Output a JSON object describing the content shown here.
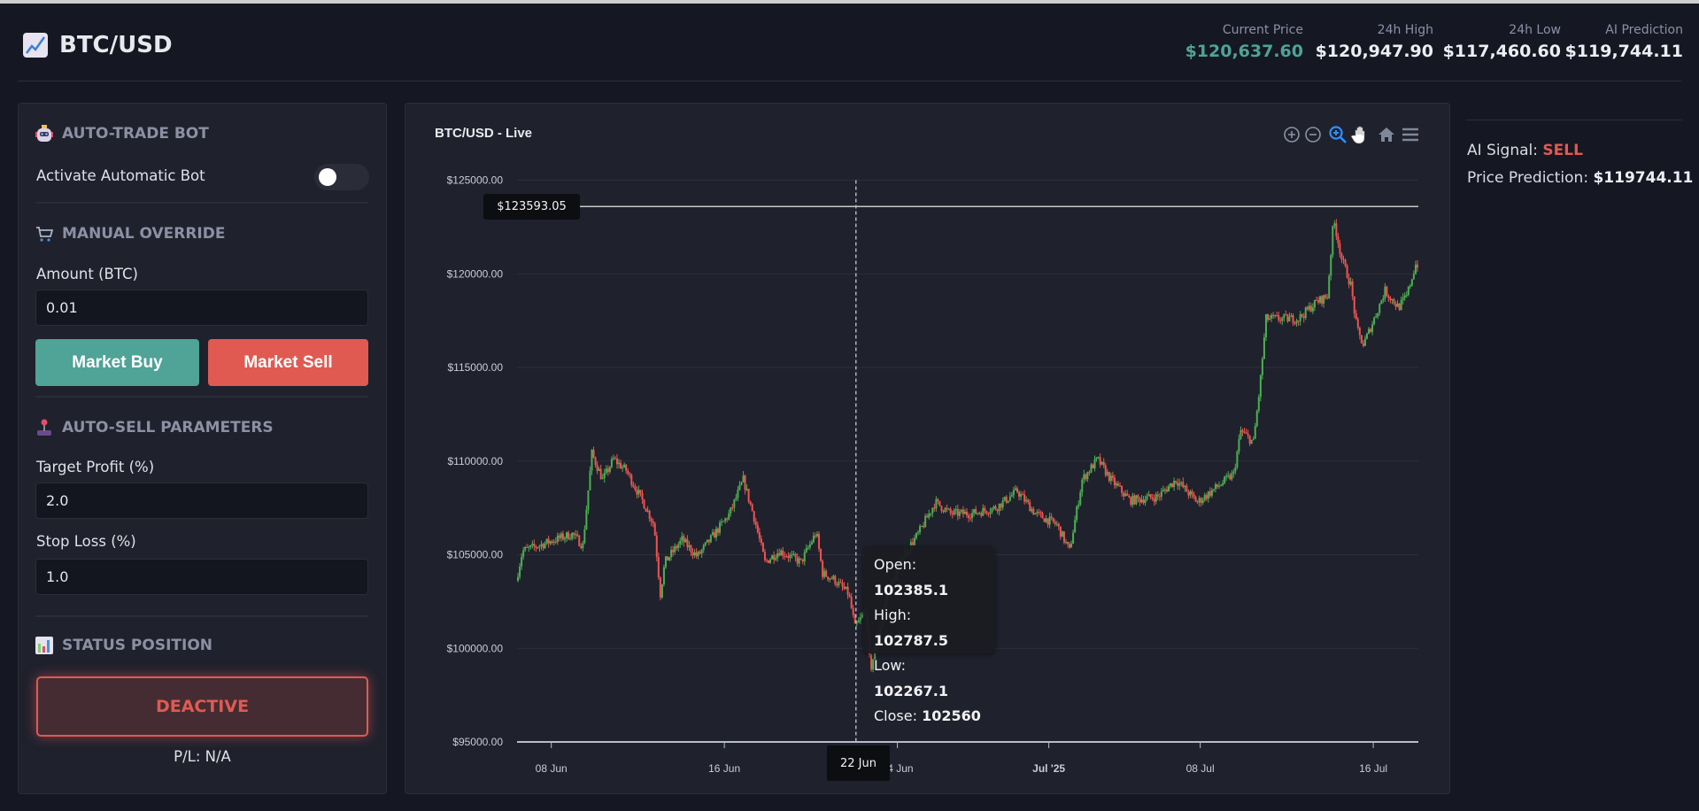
{
  "header": {
    "title": "BTC/USD",
    "icon": "chart-increasing-icon",
    "stats": [
      {
        "label": "Current Price",
        "value": "$120,637.60",
        "color": "#4fa397"
      },
      {
        "label": "24h High",
        "value": "$120,947.90"
      },
      {
        "label": "24h Low",
        "value": "$117,460.60"
      },
      {
        "label": "AI Prediction",
        "value": "$119,744.11"
      }
    ]
  },
  "sidebar": {
    "bot": {
      "title": "AUTO-TRADE BOT",
      "toggle_label": "Activate Automatic Bot",
      "toggle_on": false
    },
    "manual": {
      "title": "MANUAL OVERRIDE",
      "amount_label": "Amount (BTC)",
      "amount_value": "0.01",
      "buy_label": "Market Buy",
      "sell_label": "Market Sell"
    },
    "autosell": {
      "title": "AUTO-SELL PARAMETERS",
      "profit_label": "Target Profit (%)",
      "profit_value": "2.0",
      "stop_label": "Stop Loss (%)",
      "stop_value": "1.0"
    },
    "status": {
      "title": "STATUS POSITION",
      "state": "DEACTIVE",
      "pl": "P/L: N/A"
    }
  },
  "right": {
    "signal_label": "AI Signal:",
    "signal_value": "SELL",
    "prediction_label": "Price Prediction:",
    "prediction_value": "$119744.11"
  },
  "colors": {
    "up": "#4caf50",
    "down": "#ef5350",
    "buy": "#4fa397",
    "sell": "#e05a52"
  },
  "chart_data": {
    "type": "candlestick",
    "title": "BTC/USD - Live",
    "toolbar": [
      "zoom-in-icon",
      "zoom-out-icon",
      "selection-zoom-icon",
      "pan-hand-icon",
      "home-reset-icon",
      "menu-icon"
    ],
    "ylim": [
      95000,
      125000
    ],
    "y_ticks": [
      "$125000.00",
      "$120000.00",
      "$115000.00",
      "$110000.00",
      "$105000.00",
      "$100000.00",
      "$95000.00"
    ],
    "x_ticks": [
      {
        "date": "2025-06-08",
        "label": "08 Jun"
      },
      {
        "date": "2025-06-16",
        "label": "16 Jun"
      },
      {
        "date": "2025-06-24",
        "label": "24 Jun"
      },
      {
        "date": "2025-07-01",
        "label": "Jul '25",
        "bold": true
      },
      {
        "date": "2025-07-08",
        "label": "08 Jul"
      },
      {
        "date": "2025-07-16",
        "label": "16 Jul"
      }
    ],
    "xlim": [
      "2025-06-06T10:00",
      "2025-07-18T02:00"
    ],
    "grid": true,
    "price_line": {
      "value": 123593.05,
      "label": "$123593.05"
    },
    "crosshair": {
      "date": "2025-06-22T02:00",
      "label": "22 Jun"
    },
    "tooltip": {
      "open_label": "Open:",
      "open": "102385.1",
      "high_label": "High:",
      "high": "102787.5",
      "low_label": "Low:",
      "low": "102267.1",
      "close_label": "Close:",
      "close": "102560"
    },
    "price_path": [
      [
        "2025-06-06T10:00",
        103600
      ],
      [
        "2025-06-06T17:00",
        105200
      ],
      [
        "2025-06-07T12:00",
        105500
      ],
      [
        "2025-06-08T05:00",
        105800
      ],
      [
        "2025-06-09T00:00",
        106100
      ],
      [
        "2025-06-09T12:00",
        105500
      ],
      [
        "2025-06-09T22:00",
        110400
      ],
      [
        "2025-06-10T10:00",
        109000
      ],
      [
        "2025-06-10T22:00",
        110100
      ],
      [
        "2025-06-11T12:00",
        109500
      ],
      [
        "2025-06-12T07:00",
        107800
      ],
      [
        "2025-06-12T19:00",
        106600
      ],
      [
        "2025-06-13T02:00",
        102900
      ],
      [
        "2025-06-13T07:00",
        104600
      ],
      [
        "2025-06-14T02:00",
        105800
      ],
      [
        "2025-06-14T19:00",
        104900
      ],
      [
        "2025-06-15T14:00",
        106100
      ],
      [
        "2025-06-16T07:00",
        107200
      ],
      [
        "2025-06-16T22:00",
        109000
      ],
      [
        "2025-06-17T10:00",
        107000
      ],
      [
        "2025-06-17T22:00",
        104600
      ],
      [
        "2025-06-18T14:00",
        105200
      ],
      [
        "2025-06-19T14:00",
        104600
      ],
      [
        "2025-06-20T07:00",
        106200
      ],
      [
        "2025-06-20T14:00",
        104000
      ],
      [
        "2025-06-21T02:00",
        103700
      ],
      [
        "2025-06-21T19:00",
        102900
      ],
      [
        "2025-06-22T02:00",
        101100
      ],
      [
        "2025-06-22T14:00",
        102000
      ],
      [
        "2025-06-22T19:00",
        98800
      ],
      [
        "2025-06-23T07:00",
        101400
      ],
      [
        "2025-06-23T14:00",
        102900
      ],
      [
        "2025-06-24T07:00",
        104900
      ],
      [
        "2025-06-25T00:00",
        106100
      ],
      [
        "2025-06-25T19:00",
        107800
      ],
      [
        "2025-06-26T12:00",
        107200
      ],
      [
        "2025-06-27T12:00",
        107200
      ],
      [
        "2025-06-28T14:00",
        107500
      ],
      [
        "2025-06-29T14:00",
        108400
      ],
      [
        "2025-06-30T10:00",
        107200
      ],
      [
        "2025-07-01T10:00",
        106600
      ],
      [
        "2025-07-02T00:00",
        105200
      ],
      [
        "2025-07-02T14:00",
        109000
      ],
      [
        "2025-07-03T07:00",
        110100
      ],
      [
        "2025-07-03T22:00",
        109000
      ],
      [
        "2025-07-04T19:00",
        107900
      ],
      [
        "2025-07-06T02:00",
        108100
      ],
      [
        "2025-07-06T22:00",
        109000
      ],
      [
        "2025-07-07T22:00",
        107800
      ],
      [
        "2025-07-08T22:00",
        108700
      ],
      [
        "2025-07-09T14:00",
        109300
      ],
      [
        "2025-07-09T22:00",
        111600
      ],
      [
        "2025-07-10T12:00",
        111000
      ],
      [
        "2025-07-10T19:00",
        113900
      ],
      [
        "2025-07-11T02:00",
        117600
      ],
      [
        "2025-07-11T19:00",
        117600
      ],
      [
        "2025-07-12T14:00",
        117600
      ],
      [
        "2025-07-13T10:00",
        118500
      ],
      [
        "2025-07-13T22:00",
        118800
      ],
      [
        "2025-07-14T05:00",
        122900
      ],
      [
        "2025-07-14T14:00",
        120800
      ],
      [
        "2025-07-15T00:00",
        119400
      ],
      [
        "2025-07-15T07:00",
        117000
      ],
      [
        "2025-07-15T14:00",
        116200
      ],
      [
        "2025-07-16T02:00",
        117600
      ],
      [
        "2025-07-16T14:00",
        119100
      ],
      [
        "2025-07-17T05:00",
        118200
      ],
      [
        "2025-07-17T14:00",
        118800
      ],
      [
        "2025-07-18T00:00",
        120500
      ]
    ]
  }
}
